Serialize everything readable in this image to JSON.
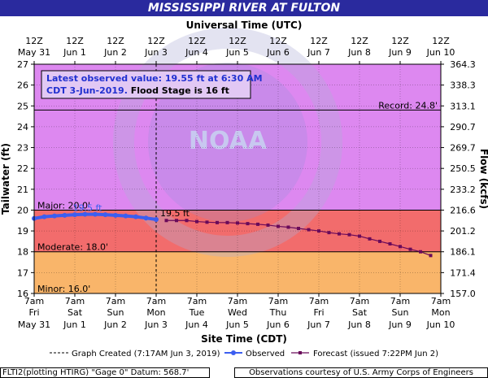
{
  "title": "MISSISSIPPI RIVER AT FULTON",
  "colors": {
    "title_bg": "#2a2a9e",
    "major": "#dd88f0",
    "moderate": "#f26c6c",
    "minor": "#f9b56a",
    "observed": "#3c5ef0",
    "forecast": "#6a0a5a",
    "info_text_blue": "#2030d0"
  },
  "chart_data": {
    "type": "line",
    "top_axis_title": "Universal Time (UTC)",
    "bottom_axis_title": "Site Time (CDT)",
    "ylabel_left": "Tailwater (ft)",
    "ylabel_right": "Flow (kcfs)",
    "ylim": [
      16,
      27
    ],
    "y_ticks": [
      16,
      17,
      18,
      19,
      20,
      21,
      22,
      23,
      24,
      25,
      26,
      27
    ],
    "right_ticks": [
      "157.0",
      "171.4",
      "186.1",
      "201.2",
      "216.6",
      "233.2",
      "250.5",
      "269.7",
      "290.7",
      "313.1",
      "338.3",
      "364.3"
    ],
    "x_range_days": [
      0,
      10
    ],
    "top_ticks": [
      {
        "l1": "12Z",
        "l2": "May 31"
      },
      {
        "l1": "12Z",
        "l2": "Jun 1"
      },
      {
        "l1": "12Z",
        "l2": "Jun 2"
      },
      {
        "l1": "12Z",
        "l2": "Jun 3"
      },
      {
        "l1": "12Z",
        "l2": "Jun 4"
      },
      {
        "l1": "12Z",
        "l2": "Jun 5"
      },
      {
        "l1": "12Z",
        "l2": "Jun 6"
      },
      {
        "l1": "12Z",
        "l2": "Jun 7"
      },
      {
        "l1": "12Z",
        "l2": "Jun 8"
      },
      {
        "l1": "12Z",
        "l2": "Jun 9"
      },
      {
        "l1": "12Z",
        "l2": "Jun 10"
      }
    ],
    "bottom_ticks": [
      {
        "l1": "7am",
        "l2": "Fri",
        "l3": "May 31"
      },
      {
        "l1": "7am",
        "l2": "Sat",
        "l3": "Jun 1"
      },
      {
        "l1": "7am",
        "l2": "Sun",
        "l3": "Jun 2"
      },
      {
        "l1": "7am",
        "l2": "Mon",
        "l3": "Jun 3"
      },
      {
        "l1": "7am",
        "l2": "Tue",
        "l3": "Jun 4"
      },
      {
        "l1": "7am",
        "l2": "Wed",
        "l3": "Jun 5"
      },
      {
        "l1": "7am",
        "l2": "Thu",
        "l3": "Jun 6"
      },
      {
        "l1": "7am",
        "l2": "Fri",
        "l3": "Jun 7"
      },
      {
        "l1": "7am",
        "l2": "Sat",
        "l3": "Jun 8"
      },
      {
        "l1": "7am",
        "l2": "Sun",
        "l3": "Jun 9"
      },
      {
        "l1": "7am",
        "l2": "Mon",
        "l3": "Jun 10"
      }
    ],
    "flood_categories": [
      {
        "name": "Major",
        "label": "Major: 20.0'",
        "from": 20,
        "to": 27
      },
      {
        "name": "Moderate",
        "label": "Moderate: 18.0'",
        "from": 18,
        "to": 20
      },
      {
        "name": "Minor",
        "label": "Minor: 16.0'",
        "from": 16,
        "to": 18
      }
    ],
    "record": {
      "label": "Record: 24.8'",
      "value": 24.8
    },
    "graph_created_day": 3.0,
    "observed_label": "19.5 ft",
    "forecast_label": "19.5 ft",
    "observed": [
      [
        0.0,
        19.6
      ],
      [
        0.25,
        19.68
      ],
      [
        0.5,
        19.72
      ],
      [
        0.75,
        19.75
      ],
      [
        1.0,
        19.78
      ],
      [
        1.25,
        19.8
      ],
      [
        1.5,
        19.8
      ],
      [
        1.75,
        19.78
      ],
      [
        2.0,
        19.75
      ],
      [
        2.25,
        19.72
      ],
      [
        2.5,
        19.68
      ],
      [
        2.75,
        19.62
      ],
      [
        3.0,
        19.55
      ]
    ],
    "forecast": [
      [
        3.25,
        19.5
      ],
      [
        3.5,
        19.5
      ],
      [
        3.75,
        19.5
      ],
      [
        4.0,
        19.45
      ],
      [
        4.25,
        19.42
      ],
      [
        4.5,
        19.4
      ],
      [
        4.75,
        19.4
      ],
      [
        5.0,
        19.38
      ],
      [
        5.25,
        19.35
      ],
      [
        5.5,
        19.32
      ],
      [
        5.75,
        19.28
      ],
      [
        6.0,
        19.22
      ],
      [
        6.25,
        19.18
      ],
      [
        6.5,
        19.12
      ],
      [
        6.75,
        19.06
      ],
      [
        7.0,
        19.0
      ],
      [
        7.25,
        18.92
      ],
      [
        7.5,
        18.86
      ],
      [
        7.75,
        18.82
      ],
      [
        8.0,
        18.75
      ],
      [
        8.25,
        18.62
      ],
      [
        8.5,
        18.5
      ],
      [
        8.75,
        18.38
      ],
      [
        9.0,
        18.25
      ],
      [
        9.25,
        18.12
      ],
      [
        9.5,
        18.0
      ],
      [
        9.75,
        17.82
      ]
    ]
  },
  "info_box": {
    "line1": "Latest observed value: 19.55 ft at 6:30 AM",
    "line2a": "CDT 3-Jun-2019.",
    "line2b": " Flood Stage is 16 ft"
  },
  "legend": {
    "graph_created": "Graph Created (7:17AM Jun 3, 2019)",
    "observed": "Observed",
    "forecast": "Forecast (issued 7:22PM Jun 2)"
  },
  "footer": {
    "left": "FLTI2(plotting HTIRG) \"Gage 0\" Datum: 568.7'",
    "right": "Observations courtesy of U.S. Army Corps of Engineers"
  }
}
